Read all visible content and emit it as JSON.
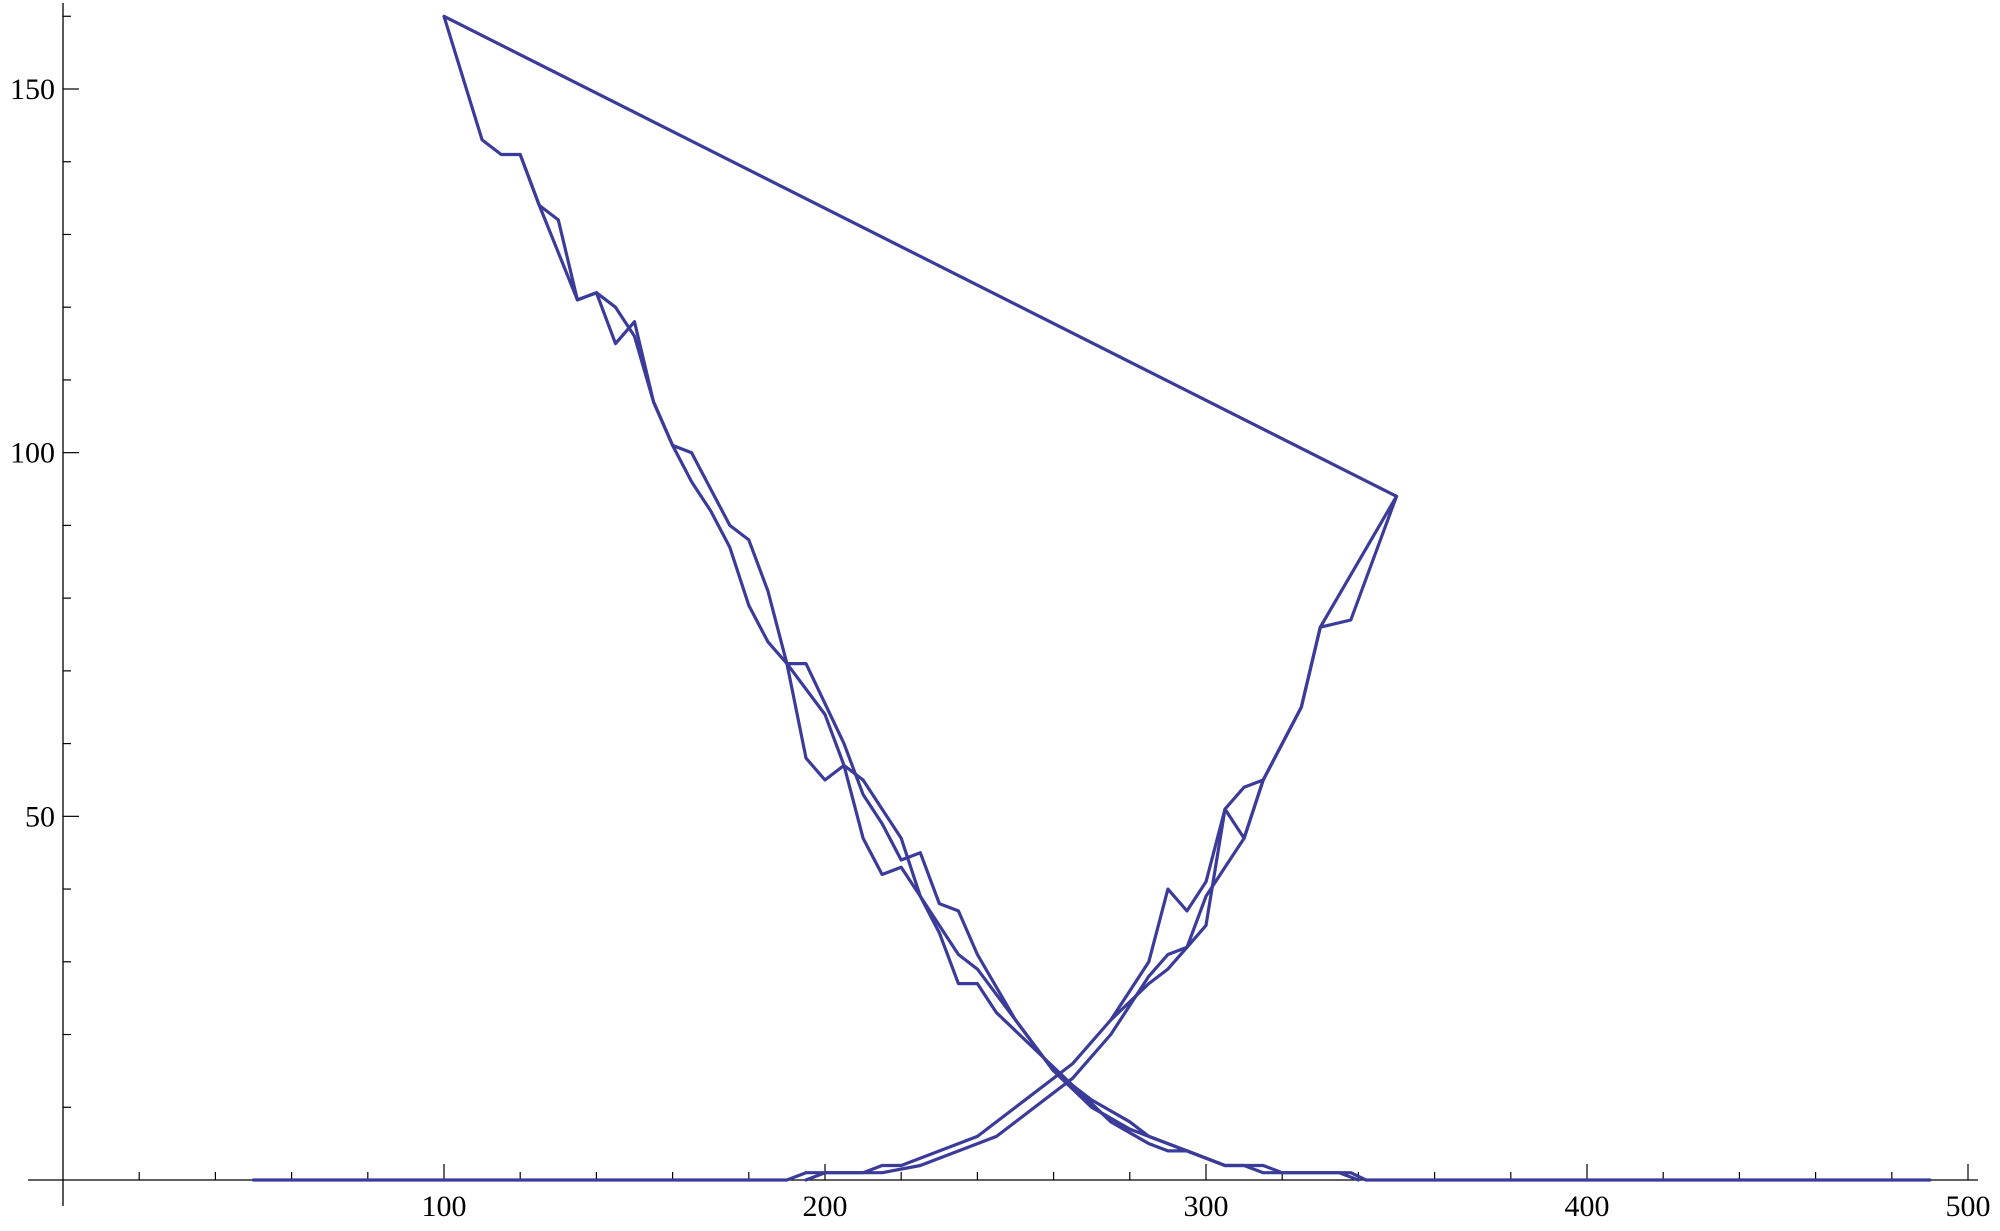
{
  "chart_data": {
    "type": "line",
    "title": "",
    "xlabel": "",
    "ylabel": "",
    "xlim": [
      0,
      500
    ],
    "ylim": [
      0,
      162
    ],
    "x_ticks": [
      100,
      200,
      300,
      400,
      500
    ],
    "y_ticks": [
      50,
      100,
      150
    ],
    "x_tick_labels": [
      "100",
      "200",
      "300",
      "400",
      "500"
    ],
    "y_tick_labels": [
      "50",
      "100",
      "150"
    ],
    "grid": false,
    "legend": "none",
    "line_color": "#3b3b9a",
    "series": [
      {
        "points": [
          [
            50,
            0
          ],
          [
            190,
            0
          ],
          [
            195,
            1
          ],
          [
            210,
            1
          ],
          [
            215,
            2
          ],
          [
            220,
            2
          ],
          [
            240,
            6
          ],
          [
            255,
            12
          ],
          [
            265,
            16
          ],
          [
            275,
            22
          ],
          [
            285,
            30
          ],
          [
            290,
            40
          ],
          [
            295,
            37
          ],
          [
            300,
            41
          ],
          [
            305,
            51
          ],
          [
            310,
            47
          ],
          [
            315,
            55
          ],
          [
            325,
            65
          ],
          [
            330,
            76
          ],
          [
            338,
            77
          ],
          [
            350,
            94
          ],
          [
            100,
            160
          ],
          [
            110,
            143
          ],
          [
            115,
            141
          ],
          [
            120,
            141
          ],
          [
            125,
            134
          ],
          [
            130,
            132
          ],
          [
            135,
            121
          ],
          [
            140,
            122
          ],
          [
            145,
            115
          ],
          [
            150,
            118
          ],
          [
            155,
            107
          ],
          [
            160,
            101
          ],
          [
            165,
            100
          ],
          [
            175,
            90
          ],
          [
            180,
            88
          ],
          [
            185,
            81
          ],
          [
            190,
            71
          ],
          [
            195,
            58
          ],
          [
            200,
            55
          ],
          [
            205,
            57
          ],
          [
            210,
            55
          ],
          [
            215,
            51
          ],
          [
            220,
            47
          ],
          [
            225,
            39
          ],
          [
            230,
            34
          ],
          [
            235,
            27
          ],
          [
            240,
            27
          ],
          [
            245,
            23
          ],
          [
            265,
            13
          ],
          [
            275,
            8
          ],
          [
            285,
            5
          ],
          [
            290,
            4
          ],
          [
            295,
            4
          ],
          [
            305,
            2
          ],
          [
            315,
            2
          ],
          [
            320,
            1
          ],
          [
            338,
            1
          ],
          [
            342,
            0
          ],
          [
            490,
            0
          ]
        ]
      },
      {
        "points": [
          [
            350,
            94
          ],
          [
            330,
            76
          ],
          [
            325,
            65
          ],
          [
            315,
            55
          ],
          [
            310,
            54
          ],
          [
            305,
            51
          ],
          [
            300,
            35
          ],
          [
            295,
            32
          ],
          [
            290,
            31
          ],
          [
            285,
            28
          ],
          [
            275,
            20
          ],
          [
            265,
            14
          ],
          [
            245,
            6
          ],
          [
            225,
            2
          ],
          [
            215,
            1
          ],
          [
            200,
            1
          ],
          [
            195,
            0
          ]
        ]
      },
      {
        "points": [
          [
            120,
            141
          ],
          [
            125,
            134
          ],
          [
            135,
            121
          ],
          [
            140,
            122
          ],
          [
            145,
            120
          ],
          [
            150,
            116
          ],
          [
            155,
            107
          ],
          [
            160,
            101
          ],
          [
            165,
            96
          ],
          [
            170,
            92
          ],
          [
            175,
            87
          ],
          [
            180,
            79
          ],
          [
            185,
            74
          ],
          [
            190,
            71
          ],
          [
            195,
            71
          ],
          [
            205,
            60
          ],
          [
            210,
            53
          ],
          [
            215,
            49
          ],
          [
            220,
            44
          ],
          [
            225,
            45
          ],
          [
            230,
            38
          ],
          [
            235,
            37
          ],
          [
            240,
            31
          ],
          [
            250,
            22
          ],
          [
            260,
            15
          ],
          [
            270,
            11
          ],
          [
            280,
            8
          ],
          [
            285,
            6
          ],
          [
            295,
            4
          ],
          [
            305,
            2
          ],
          [
            310,
            2
          ],
          [
            315,
            1
          ],
          [
            335,
            1
          ],
          [
            340,
            0
          ]
        ]
      },
      {
        "points": [
          [
            190,
            71
          ],
          [
            200,
            64
          ],
          [
            205,
            57
          ],
          [
            210,
            47
          ],
          [
            215,
            42
          ],
          [
            220,
            43
          ],
          [
            225,
            39
          ],
          [
            230,
            35
          ],
          [
            235,
            31
          ],
          [
            240,
            29
          ],
          [
            250,
            22
          ],
          [
            260,
            15
          ],
          [
            270,
            10
          ],
          [
            280,
            7
          ],
          [
            290,
            5
          ],
          [
            300,
            3
          ],
          [
            305,
            2
          ]
        ]
      },
      {
        "points": [
          [
            275,
            22
          ],
          [
            285,
            27
          ],
          [
            290,
            29
          ],
          [
            295,
            32
          ],
          [
            300,
            39
          ],
          [
            305,
            43
          ],
          [
            310,
            47
          ],
          [
            315,
            55
          ]
        ]
      }
    ]
  }
}
